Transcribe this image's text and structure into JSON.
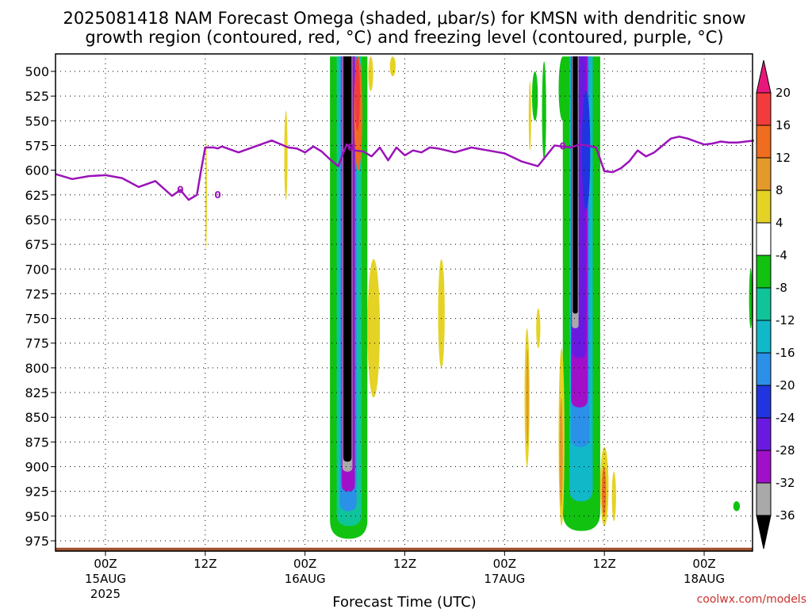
{
  "title": {
    "line1": "2025081418 NAM Forecast Omega (shaded, μbar/s) for KMSN with dendritic snow",
    "line2": "growth region (contoured, red, °C) and freezing level (contoured, purple, °C)"
  },
  "credit": "coolwx.com/models",
  "colors": {
    "freezing_level": "#9a13b8",
    "ground": "#a0522d",
    "plot_border": "#000000"
  },
  "chart_data": {
    "type": "heatmap",
    "title": "2025081418 NAM Forecast Omega (shaded, μbar/s) for KMSN with dendritic snow growth region (contoured, red, °C) and freezing level (contoured, purple, °C)",
    "xlabel": "Forecast Time (UTC)",
    "ylabel": "",
    "x_unit": "hours since 2025-08-14 18Z",
    "xlim": [
      0,
      84
    ],
    "ylim": [
      990,
      485
    ],
    "y_scale": "inverted pressure (hPa)",
    "grid": true,
    "y_ticks": [
      500,
      525,
      550,
      575,
      600,
      625,
      650,
      675,
      700,
      725,
      750,
      775,
      800,
      825,
      850,
      875,
      900,
      925,
      950,
      975
    ],
    "x_ticks": [
      {
        "x": 6,
        "line1": "00Z",
        "line2": "15AUG",
        "line3": "2025"
      },
      {
        "x": 18,
        "line1": "12Z",
        "line2": "",
        "line3": ""
      },
      {
        "x": 30,
        "line1": "00Z",
        "line2": "16AUG",
        "line3": ""
      },
      {
        "x": 42,
        "line1": "12Z",
        "line2": "",
        "line3": ""
      },
      {
        "x": 54,
        "line1": "00Z",
        "line2": "17AUG",
        "line3": ""
      },
      {
        "x": 66,
        "line1": "12Z",
        "line2": "",
        "line3": ""
      },
      {
        "x": 78,
        "line1": "00Z",
        "line2": "18AUG",
        "line3": ""
      }
    ],
    "colorbar": {
      "unit": "μbar/s",
      "labels": [
        "20",
        "16",
        "12",
        "8",
        "4",
        "-4",
        "-8",
        "-12",
        "-16",
        "-20",
        "-24",
        "-28",
        "-32",
        "-36"
      ],
      "bins": [
        {
          "range": ">20",
          "color": "#e6197a"
        },
        {
          "range": "16 to 20",
          "color": "#f23c3c"
        },
        {
          "range": "12 to 16",
          "color": "#f06c1f"
        },
        {
          "range": "8 to 12",
          "color": "#e39a2a"
        },
        {
          "range": "4 to 8",
          "color": "#e4d325"
        },
        {
          "range": "-4 to 4",
          "color": "#ffffff"
        },
        {
          "range": "-8 to -4",
          "color": "#11c211"
        },
        {
          "range": "-12 to -8",
          "color": "#10c49a"
        },
        {
          "range": "-16 to -12",
          "color": "#10b8c8"
        },
        {
          "range": "-20 to -16",
          "color": "#2b90e8"
        },
        {
          "range": "-24 to -20",
          "color": "#2035e0"
        },
        {
          "range": "-28 to -24",
          "color": "#6a1ae0"
        },
        {
          "range": "-32 to -28",
          "color": "#a010c8"
        },
        {
          "range": "-36 to -32",
          "color": "#a9a9a9"
        },
        {
          "range": "<-36",
          "color": "#000000"
        }
      ]
    },
    "freezing_level_0C_hPa": {
      "x": [
        0,
        2,
        4,
        6,
        8,
        10,
        12,
        14,
        15,
        16,
        17,
        17.5,
        18,
        18.5,
        19,
        19.5,
        20,
        22,
        24,
        26,
        28,
        29,
        30,
        31,
        32,
        33,
        34,
        35,
        36,
        37,
        38,
        39,
        40,
        41,
        42,
        43,
        44,
        45,
        46,
        48,
        50,
        52,
        54,
        56,
        58,
        60,
        61,
        62,
        63,
        64,
        65,
        66,
        67,
        68,
        69,
        70,
        71,
        72,
        73,
        74,
        75,
        76,
        77,
        78,
        79,
        80,
        81,
        82,
        83,
        84
      ],
      "pressure": [
        604,
        609,
        606,
        605,
        608,
        617,
        611,
        626,
        620,
        630,
        625,
        600,
        577,
        577,
        577,
        578,
        576,
        582,
        576,
        570,
        577,
        578,
        582,
        576,
        581,
        589,
        596,
        574,
        580,
        581,
        586,
        577,
        590,
        577,
        585,
        580,
        582,
        577,
        578,
        582,
        577,
        580,
        583,
        591,
        596,
        575,
        576,
        577,
        574,
        575,
        577,
        601,
        602,
        598,
        591,
        580,
        586,
        582,
        575,
        568,
        566,
        568,
        571,
        574,
        573,
        571,
        572,
        572,
        571,
        570
      ]
    },
    "freezing_level_labels": [
      {
        "x": 15,
        "p": 620,
        "text": "0"
      },
      {
        "x": 19.5,
        "p": 625,
        "text": "0"
      },
      {
        "x": 35.5,
        "p": 577,
        "text": "0"
      },
      {
        "x": 61,
        "p": 576,
        "text": "0"
      }
    ],
    "omega_features": [
      {
        "label": "ascent_band_16AUG",
        "x_range": [
          34.5,
          36.5
        ],
        "p_range": [
          485,
          965
        ],
        "min_omega": "<-36"
      },
      {
        "label": "ascent_band_17AUG",
        "x_range": [
          61,
          65
        ],
        "p_range": [
          485,
          960
        ],
        "min_omega": "<-36"
      },
      {
        "label": "descent_patch",
        "x_range": [
          37.5,
          39
        ],
        "p_range": [
          690,
          830
        ],
        "max_omega": "4 to 8"
      },
      {
        "label": "descent_patch",
        "x_range": [
          46,
          46.8
        ],
        "p_range": [
          690,
          800
        ],
        "max_omega": "4 to 8"
      },
      {
        "label": "descent_patch",
        "x_range": [
          65.5,
          66.5
        ],
        "p_range": [
          880,
          960
        ],
        "max_omega": "16 to 20"
      },
      {
        "label": "ascent_patch_east",
        "x_range": [
          83.4,
          83.8
        ],
        "p_range": [
          700,
          760
        ],
        "min_omega": "-8 to -4"
      },
      {
        "label": "ascent_patch_east",
        "x_range": [
          81.5,
          82.3
        ],
        "p_range": [
          935,
          945
        ],
        "min_omega": "-8 to -4"
      }
    ],
    "surface_pressure_hPa": 982
  }
}
